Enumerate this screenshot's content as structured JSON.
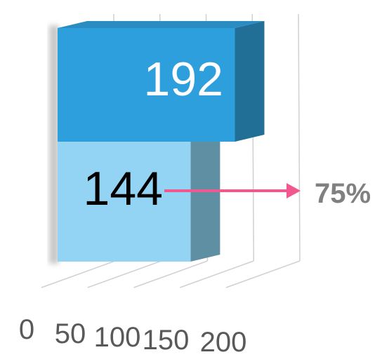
{
  "chart_data": {
    "type": "bar",
    "orientation": "horizontal",
    "style": "3d",
    "series": [
      {
        "values": [
          192
        ],
        "color": "#2E9FDD"
      },
      {
        "values": [
          144
        ],
        "color": "#93D3F4"
      }
    ],
    "x_ticks": [
      "0",
      "50",
      "100",
      "150",
      "200"
    ],
    "xlim": [
      0,
      200
    ],
    "grid": true,
    "annotation": {
      "text": "75%",
      "arrow_color": "#F0588F"
    }
  }
}
